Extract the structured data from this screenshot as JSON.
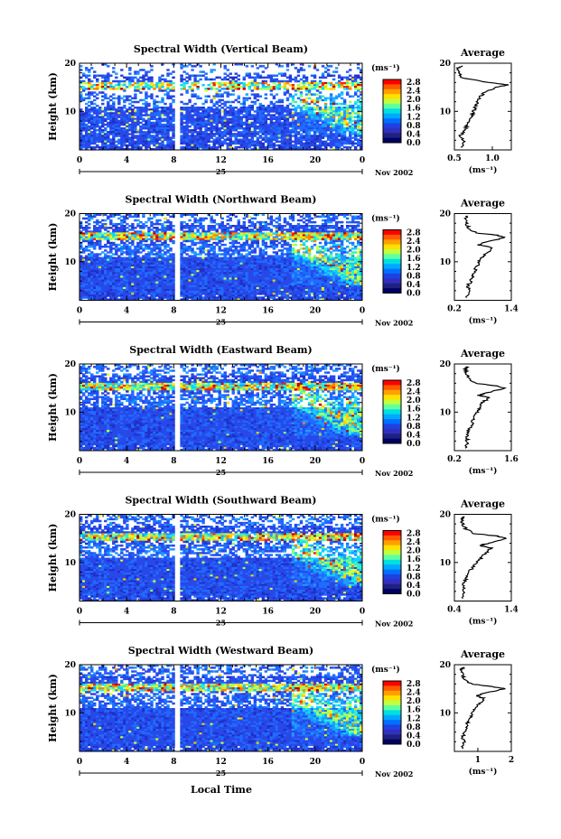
{
  "figure": {
    "xlabel": "Local Time",
    "date_label": "Nov 2002",
    "day_label": "25",
    "colorbar_unit": "(ms⁻¹)",
    "colorbar_ticks": [
      "2.8",
      "2.4",
      "2.0",
      "1.6",
      "1.2",
      "0.8",
      "0.4",
      "0.0"
    ],
    "colorbar_colors": [
      "#ff0000",
      "#ff5a00",
      "#ffa000",
      "#ffe000",
      "#c0ff40",
      "#60ffa0",
      "#00e0e0",
      "#00a8ff",
      "#0070ff",
      "#2040e0",
      "#3030c0",
      "#202080",
      "#000060"
    ],
    "avg_title": "Average",
    "avg_xunit": "(ms⁻¹)",
    "ylabel": "Height (km)"
  },
  "chart_data": [
    {
      "type": "heatmap",
      "title": "Spectral Width (Vertical Beam)",
      "ylabel": "Height (km)",
      "xlabel": "",
      "x_ticks": [
        "0",
        "4",
        "8",
        "12",
        "16",
        "20",
        "0"
      ],
      "xlim": [
        0,
        24
      ],
      "y_ticks": [
        "20",
        "10"
      ],
      "ylim": [
        2,
        20
      ],
      "gap_hours": [
        8.0,
        8.3
      ],
      "colorbar": {
        "min": 0.0,
        "max": 2.8,
        "unit": "(ms⁻¹)"
      },
      "average_profile": {
        "title": "Average",
        "x_ticks": [
          "0.5",
          "1.0"
        ],
        "xlim": [
          0.5,
          1.25
        ],
        "y_ticks": [
          "20",
          "10"
        ],
        "ylim": [
          2,
          20
        ],
        "x_unit": "(ms⁻¹)",
        "height_km": [
          2.5,
          4,
          5,
          6,
          7,
          8,
          9,
          10,
          11,
          12,
          13,
          14,
          15,
          15.5,
          16,
          17,
          18,
          19,
          19.5
        ],
        "values": [
          0.6,
          0.62,
          0.58,
          0.64,
          0.66,
          0.7,
          0.73,
          0.75,
          0.78,
          0.8,
          0.84,
          0.9,
          1.05,
          1.2,
          0.95,
          0.6,
          0.56,
          0.55,
          0.6
        ]
      }
    },
    {
      "type": "heatmap",
      "title": "Spectral Width (Northward Beam)",
      "ylabel": "Height (km)",
      "xlabel": "",
      "x_ticks": [
        "0",
        "4",
        "8",
        "12",
        "16",
        "20",
        "0"
      ],
      "xlim": [
        0,
        24
      ],
      "y_ticks": [
        "20",
        "10"
      ],
      "ylim": [
        2,
        20
      ],
      "gap_hours": [
        8.0,
        8.3
      ],
      "colorbar": {
        "min": 0.0,
        "max": 2.8,
        "unit": "(ms⁻¹)"
      },
      "average_profile": {
        "title": "Average",
        "x_ticks": [
          "0.2",
          "1.4"
        ],
        "xlim": [
          0.2,
          1.4
        ],
        "y_ticks": [
          "20",
          "10"
        ],
        "ylim": [
          2,
          20
        ],
        "x_unit": "(ms⁻¹)",
        "height_km": [
          2.5,
          4,
          5,
          6,
          7,
          8,
          9,
          10,
          11,
          12,
          13,
          13.5,
          14,
          15,
          15.5,
          16,
          17,
          18,
          19,
          19.5
        ],
        "values": [
          0.45,
          0.5,
          0.48,
          0.55,
          0.58,
          0.62,
          0.68,
          0.72,
          0.8,
          0.9,
          1.0,
          0.7,
          0.85,
          1.25,
          1.1,
          0.65,
          0.5,
          0.45,
          0.42,
          0.48
        ]
      }
    },
    {
      "type": "heatmap",
      "title": "Spectral Width (Eastward Beam)",
      "ylabel": "Height (km)",
      "xlabel": "",
      "x_ticks": [
        "0",
        "4",
        "8",
        "12",
        "16",
        "20",
        "0"
      ],
      "xlim": [
        0,
        24
      ],
      "y_ticks": [
        "20",
        "10"
      ],
      "ylim": [
        2,
        20
      ],
      "gap_hours": [
        8.0,
        8.3
      ],
      "colorbar": {
        "min": 0.0,
        "max": 2.8,
        "unit": "(ms⁻¹)"
      },
      "average_profile": {
        "title": "Average",
        "x_ticks": [
          "0.2",
          "1.6"
        ],
        "xlim": [
          0.2,
          1.6
        ],
        "y_ticks": [
          "20",
          "10"
        ],
        "ylim": [
          2,
          20
        ],
        "x_unit": "(ms⁻¹)",
        "height_km": [
          2.5,
          4,
          5,
          6,
          7,
          8,
          9,
          10,
          11,
          12,
          13,
          13.5,
          14,
          15,
          15.5,
          16,
          17,
          18,
          19,
          19.5
        ],
        "values": [
          0.5,
          0.52,
          0.5,
          0.55,
          0.6,
          0.65,
          0.7,
          0.75,
          0.82,
          0.9,
          1.05,
          0.8,
          1.0,
          1.45,
          1.2,
          0.7,
          0.55,
          0.5,
          0.48,
          0.52
        ]
      }
    },
    {
      "type": "heatmap",
      "title": "Spectral Width (Southward Beam)",
      "ylabel": "Height (km)",
      "xlabel": "",
      "x_ticks": [
        "0",
        "4",
        "8",
        "12",
        "16",
        "20",
        "0"
      ],
      "xlim": [
        0,
        24
      ],
      "y_ticks": [
        "20",
        "10"
      ],
      "ylim": [
        2,
        20
      ],
      "gap_hours": [
        8.0,
        8.3
      ],
      "colorbar": {
        "min": 0.0,
        "max": 2.8,
        "unit": "(ms⁻¹)"
      },
      "average_profile": {
        "title": "Average",
        "x_ticks": [
          "0.4",
          "1.4"
        ],
        "xlim": [
          0.4,
          1.4
        ],
        "y_ticks": [
          "20",
          "10"
        ],
        "ylim": [
          2,
          20
        ],
        "x_unit": "(ms⁻¹)",
        "height_km": [
          2.5,
          4,
          5,
          6,
          7,
          8,
          9,
          10,
          11,
          12,
          13,
          13.5,
          14,
          15,
          15.5,
          16,
          17,
          18,
          19,
          19.5
        ],
        "values": [
          0.55,
          0.56,
          0.55,
          0.58,
          0.62,
          0.66,
          0.72,
          0.78,
          0.88,
          0.95,
          1.05,
          0.85,
          1.0,
          1.3,
          1.15,
          0.75,
          0.6,
          0.55,
          0.52,
          0.58
        ]
      }
    },
    {
      "type": "heatmap",
      "title": "Spectral Width (Westward Beam)",
      "ylabel": "Height (km)",
      "xlabel": "Local Time",
      "x_ticks": [
        "0",
        "4",
        "8",
        "12",
        "16",
        "20",
        "0"
      ],
      "xlim": [
        0,
        24
      ],
      "y_ticks": [
        "20",
        "10"
      ],
      "ylim": [
        2,
        20
      ],
      "gap_hours": [
        8.0,
        8.3
      ],
      "colorbar": {
        "min": 0.0,
        "max": 2.8,
        "unit": "(ms⁻¹)"
      },
      "average_profile": {
        "title": "Average",
        "x_ticks": [
          "1",
          "2"
        ],
        "xlim": [
          0.3,
          2.0
        ],
        "y_ticks": [
          "20",
          "10"
        ],
        "ylim": [
          2,
          20
        ],
        "x_unit": "(ms⁻¹)",
        "height_km": [
          2.5,
          4,
          5,
          6,
          7,
          8,
          9,
          10,
          11,
          12,
          13,
          13.5,
          14,
          15,
          15.5,
          16,
          17,
          18,
          19,
          19.5
        ],
        "values": [
          0.55,
          0.58,
          0.55,
          0.6,
          0.65,
          0.7,
          0.78,
          0.85,
          0.95,
          1.05,
          1.2,
          0.95,
          1.15,
          1.8,
          1.4,
          0.8,
          0.6,
          0.55,
          0.52,
          0.6
        ]
      }
    }
  ]
}
